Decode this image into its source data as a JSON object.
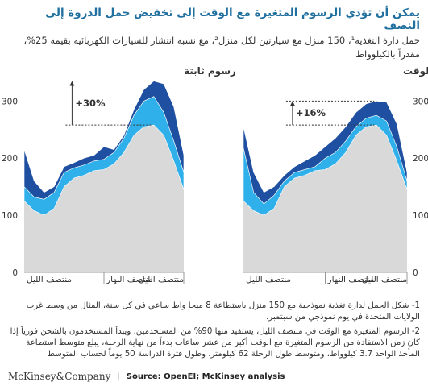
{
  "chart_data": [
    {
      "type": "area",
      "title": "رسوم ثابتة",
      "categories": [
        "منتصف الليل",
        null,
        null,
        null,
        null,
        null,
        null,
        null,
        "منتصف النهار",
        null,
        null,
        null,
        null,
        null,
        null,
        null,
        "منتصف الليل"
      ],
      "series": [
        {
          "color": "#d9d9d9",
          "values": [
            125,
            108,
            100,
            112,
            150,
            165,
            170,
            178,
            180,
            190,
            210,
            240,
            255,
            258,
            240,
            195,
            145
          ]
        },
        {
          "color": "#2fb0ea",
          "values": [
            25,
            24,
            28,
            28,
            25,
            18,
            18,
            17,
            18,
            20,
            25,
            35,
            45,
            50,
            40,
            35,
            30
          ]
        },
        {
          "color": "#1f4fa0",
          "values": [
            65,
            28,
            12,
            10,
            10,
            9,
            12,
            10,
            22,
            5,
            5,
            10,
            20,
            27,
            50,
            60,
            30
          ]
        }
      ],
      "ylim": [
        0,
        340
      ],
      "yticks": [
        0,
        100,
        200,
        300
      ],
      "annotation": {
        "text": "+30%",
        "from": 258,
        "to": 335
      }
    },
    {
      "type": "area",
      "title": "رسوم متغيرة مع الوقت",
      "categories": [
        "منتصف الليل",
        null,
        null,
        null,
        null,
        null,
        null,
        null,
        "منتصف النهار",
        null,
        null,
        null,
        null,
        null,
        null,
        null,
        "منتصف الليل"
      ],
      "series": [
        {
          "color": "#d9d9d9",
          "values": [
            125,
            108,
            100,
            112,
            150,
            165,
            170,
            178,
            180,
            190,
            210,
            240,
            255,
            258,
            240,
            195,
            145
          ]
        },
        {
          "color": "#2fb0ea",
          "values": [
            93,
            32,
            20,
            23,
            10,
            10,
            10,
            7,
            20,
            20,
            20,
            15,
            15,
            17,
            25,
            25,
            15
          ]
        },
        {
          "color": "#1f4fa0",
          "values": [
            37,
            35,
            20,
            15,
            10,
            10,
            15,
            20,
            20,
            25,
            25,
            25,
            25,
            25,
            33,
            40,
            15
          ]
        }
      ],
      "ylim": [
        0,
        340
      ],
      "yticks": [
        0,
        100,
        200,
        300
      ],
      "annotation": {
        "text": "+16%",
        "from": 258,
        "to": 300
      }
    }
  ],
  "header": {
    "title": "يمكن أن تؤدي الرسوم المتغيرة مع الوقت إلى تخفيض حمل الذروة إلى النصف",
    "subtitle": "حمل دارة التغذية¹، 150 منزل مع سيارتين لكل منزل²، مع نسبة انتشار للسيارات الكهربائية بقيمة 25%، مقدراً بالكيلوواط"
  },
  "notes": [
    "1- شكل الحمل لدارة تغذية نموذجية مع 150 منزل باستطاعة 8 ميجا واط ساعي في كل سنة، المثال من وسط غرب الولايات المتحدة في يوم نموذجي من سبتمبر.",
    "2- الرسوم المتغيرة مع الوقت في منتصف الليل، يستفيد منها 90% من المستخدمين، ويبدأ المستخدمون بالشحن فورياً إذا كان زمن الاستفادة من الرسوم المتغيرة مع الوقت أكبر من عشر ساعات بدءاً من نهاية الرحلة، يبلغ متوسط استطاعة المأخذ الواحد 3.7 كيلوواط، ومتوسط طول الرحلة 62 كيلومتر، وطول فترة الدراسة 50 يوماً لحساب المتوسط"
  ],
  "footer": {
    "logo": "McKinsey&Company",
    "source": "Source: OpenEI; McKinsey analysis"
  }
}
